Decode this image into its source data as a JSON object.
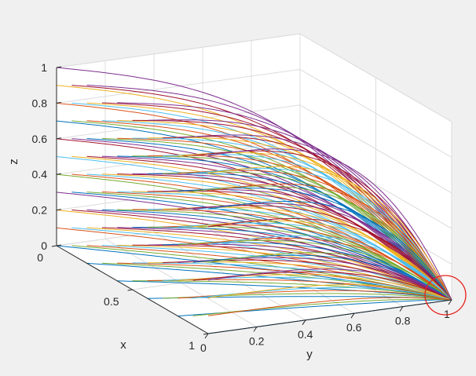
{
  "chart_data": {
    "type": "line",
    "subtype": "3d-trajectories",
    "title": "",
    "xlabel": "x",
    "ylabel": "y",
    "zlabel": "z",
    "xlim": [
      0,
      1
    ],
    "ylim": [
      0,
      1
    ],
    "zlim": [
      0,
      1
    ],
    "x_ticks": [
      "0",
      "0.5",
      "1"
    ],
    "y_ticks": [
      "0",
      "0.2",
      "0.4",
      "0.6",
      "0.8",
      "1"
    ],
    "z_ticks": [
      "0",
      "0.2",
      "0.4",
      "0.6",
      "0.8",
      "1"
    ],
    "grid": true,
    "box": "back-planes",
    "convergence_point": {
      "x": 1,
      "y": 1,
      "z": 0
    },
    "annotation": {
      "kind": "circle",
      "color": "#e8201a",
      "around": "convergence point (1, 1, 0)"
    },
    "series_colors": [
      "#0072bd",
      "#d95319",
      "#edb120",
      "#7e2f8e",
      "#77ac30",
      "#4dbeee",
      "#a2142f"
    ],
    "series": [
      {
        "x": 0.0,
        "z": 0.0,
        "color": "#0072bd"
      },
      {
        "x": 0.0,
        "z": 0.1,
        "color": "#d95319"
      },
      {
        "x": 0.0,
        "z": 0.2,
        "color": "#edb120"
      },
      {
        "x": 0.0,
        "z": 0.3,
        "color": "#7e2f8e"
      },
      {
        "x": 0.0,
        "z": 0.4,
        "color": "#77ac30"
      },
      {
        "x": 0.0,
        "z": 0.5,
        "color": "#4dbeee"
      },
      {
        "x": 0.0,
        "z": 0.6,
        "color": "#a2142f"
      },
      {
        "x": 0.0,
        "z": 0.7,
        "color": "#0072bd"
      },
      {
        "x": 0.0,
        "z": 0.8,
        "color": "#d95319"
      },
      {
        "x": 0.0,
        "z": 0.9,
        "color": "#edb120"
      },
      {
        "x": 0.0,
        "z": 1.0,
        "color": "#7e2f8e"
      },
      {
        "x": 0.1,
        "z": 0.05,
        "color": "#77ac30"
      },
      {
        "x": 0.1,
        "z": 0.15,
        "color": "#4dbeee"
      },
      {
        "x": 0.1,
        "z": 0.25,
        "color": "#a2142f"
      },
      {
        "x": 0.1,
        "z": 0.35,
        "color": "#0072bd"
      },
      {
        "x": 0.1,
        "z": 0.45,
        "color": "#d95319"
      },
      {
        "x": 0.1,
        "z": 0.55,
        "color": "#edb120"
      },
      {
        "x": 0.1,
        "z": 0.65,
        "color": "#7e2f8e"
      },
      {
        "x": 0.1,
        "z": 0.75,
        "color": "#77ac30"
      },
      {
        "x": 0.1,
        "z": 0.85,
        "color": "#4dbeee"
      },
      {
        "x": 0.1,
        "z": 0.95,
        "color": "#a2142f"
      },
      {
        "x": 0.2,
        "z": 0.0,
        "color": "#0072bd"
      },
      {
        "x": 0.2,
        "z": 0.1,
        "color": "#d95319"
      },
      {
        "x": 0.2,
        "z": 0.2,
        "color": "#edb120"
      },
      {
        "x": 0.2,
        "z": 0.3,
        "color": "#7e2f8e"
      },
      {
        "x": 0.2,
        "z": 0.4,
        "color": "#77ac30"
      },
      {
        "x": 0.2,
        "z": 0.5,
        "color": "#4dbeee"
      },
      {
        "x": 0.2,
        "z": 0.6,
        "color": "#a2142f"
      },
      {
        "x": 0.2,
        "z": 0.7,
        "color": "#0072bd"
      },
      {
        "x": 0.2,
        "z": 0.8,
        "color": "#d95319"
      },
      {
        "x": 0.2,
        "z": 0.9,
        "color": "#edb120"
      },
      {
        "x": 0.2,
        "z": 1.0,
        "color": "#7e2f8e"
      },
      {
        "x": 0.3,
        "z": 0.05,
        "color": "#77ac30"
      },
      {
        "x": 0.3,
        "z": 0.15,
        "color": "#4dbeee"
      },
      {
        "x": 0.3,
        "z": 0.25,
        "color": "#a2142f"
      },
      {
        "x": 0.3,
        "z": 0.35,
        "color": "#0072bd"
      },
      {
        "x": 0.3,
        "z": 0.45,
        "color": "#d95319"
      },
      {
        "x": 0.3,
        "z": 0.55,
        "color": "#edb120"
      },
      {
        "x": 0.3,
        "z": 0.65,
        "color": "#7e2f8e"
      },
      {
        "x": 0.3,
        "z": 0.75,
        "color": "#77ac30"
      },
      {
        "x": 0.3,
        "z": 0.85,
        "color": "#4dbeee"
      },
      {
        "x": 0.3,
        "z": 0.95,
        "color": "#a2142f"
      },
      {
        "x": 0.4,
        "z": 0.0,
        "color": "#0072bd"
      },
      {
        "x": 0.4,
        "z": 0.1,
        "color": "#d95319"
      },
      {
        "x": 0.4,
        "z": 0.2,
        "color": "#edb120"
      },
      {
        "x": 0.4,
        "z": 0.3,
        "color": "#7e2f8e"
      },
      {
        "x": 0.4,
        "z": 0.4,
        "color": "#77ac30"
      },
      {
        "x": 0.4,
        "z": 0.5,
        "color": "#4dbeee"
      },
      {
        "x": 0.4,
        "z": 0.6,
        "color": "#a2142f"
      },
      {
        "x": 0.4,
        "z": 0.7,
        "color": "#0072bd"
      },
      {
        "x": 0.4,
        "z": 0.8,
        "color": "#d95319"
      },
      {
        "x": 0.4,
        "z": 0.9,
        "color": "#edb120"
      },
      {
        "x": 0.4,
        "z": 1.0,
        "color": "#7e2f8e"
      },
      {
        "x": 0.5,
        "z": 0.05,
        "color": "#77ac30"
      },
      {
        "x": 0.5,
        "z": 0.15,
        "color": "#4dbeee"
      },
      {
        "x": 0.5,
        "z": 0.25,
        "color": "#a2142f"
      },
      {
        "x": 0.5,
        "z": 0.35,
        "color": "#0072bd"
      },
      {
        "x": 0.5,
        "z": 0.45,
        "color": "#d95319"
      },
      {
        "x": 0.5,
        "z": 0.55,
        "color": "#edb120"
      },
      {
        "x": 0.5,
        "z": 0.65,
        "color": "#7e2f8e"
      },
      {
        "x": 0.5,
        "z": 0.75,
        "color": "#77ac30"
      },
      {
        "x": 0.5,
        "z": 0.85,
        "color": "#4dbeee"
      },
      {
        "x": 0.5,
        "z": 0.95,
        "color": "#a2142f"
      },
      {
        "x": 0.6,
        "z": 0.0,
        "color": "#0072bd"
      },
      {
        "x": 0.6,
        "z": 0.1,
        "color": "#d95319"
      },
      {
        "x": 0.6,
        "z": 0.2,
        "color": "#edb120"
      },
      {
        "x": 0.6,
        "z": 0.3,
        "color": "#7e2f8e"
      },
      {
        "x": 0.6,
        "z": 0.4,
        "color": "#77ac30"
      },
      {
        "x": 0.6,
        "z": 0.5,
        "color": "#4dbeee"
      },
      {
        "x": 0.6,
        "z": 0.6,
        "color": "#a2142f"
      },
      {
        "x": 0.6,
        "z": 0.7,
        "color": "#0072bd"
      },
      {
        "x": 0.6,
        "z": 0.8,
        "color": "#d95319"
      },
      {
        "x": 0.6,
        "z": 0.9,
        "color": "#edb120"
      },
      {
        "x": 0.6,
        "z": 1.0,
        "color": "#7e2f8e"
      },
      {
        "x": 0.7,
        "z": 0.05,
        "color": "#77ac30"
      },
      {
        "x": 0.7,
        "z": 0.15,
        "color": "#4dbeee"
      },
      {
        "x": 0.7,
        "z": 0.25,
        "color": "#a2142f"
      },
      {
        "x": 0.7,
        "z": 0.35,
        "color": "#0072bd"
      },
      {
        "x": 0.7,
        "z": 0.45,
        "color": "#d95319"
      },
      {
        "x": 0.7,
        "z": 0.55,
        "color": "#edb120"
      },
      {
        "x": 0.7,
        "z": 0.65,
        "color": "#7e2f8e"
      },
      {
        "x": 0.7,
        "z": 0.75,
        "color": "#77ac30"
      },
      {
        "x": 0.7,
        "z": 0.85,
        "color": "#4dbeee"
      },
      {
        "x": 0.7,
        "z": 0.95,
        "color": "#a2142f"
      },
      {
        "x": 0.8,
        "z": 0.0,
        "color": "#0072bd"
      },
      {
        "x": 0.8,
        "z": 0.1,
        "color": "#d95319"
      },
      {
        "x": 0.8,
        "z": 0.2,
        "color": "#edb120"
      },
      {
        "x": 0.8,
        "z": 0.3,
        "color": "#7e2f8e"
      },
      {
        "x": 0.8,
        "z": 0.4,
        "color": "#77ac30"
      },
      {
        "x": 0.8,
        "z": 0.5,
        "color": "#4dbeee"
      },
      {
        "x": 0.8,
        "z": 0.6,
        "color": "#a2142f"
      },
      {
        "x": 0.8,
        "z": 0.7,
        "color": "#0072bd"
      },
      {
        "x": 0.8,
        "z": 0.8,
        "color": "#d95319"
      },
      {
        "x": 0.8,
        "z": 0.9,
        "color": "#edb120"
      },
      {
        "x": 0.8,
        "z": 1.0,
        "color": "#7e2f8e"
      },
      {
        "x": 0.9,
        "z": 0.05,
        "color": "#77ac30"
      },
      {
        "x": 0.9,
        "z": 0.15,
        "color": "#4dbeee"
      },
      {
        "x": 0.9,
        "z": 0.25,
        "color": "#a2142f"
      },
      {
        "x": 0.9,
        "z": 0.35,
        "color": "#0072bd"
      },
      {
        "x": 0.9,
        "z": 0.45,
        "color": "#d95319"
      },
      {
        "x": 0.9,
        "z": 0.55,
        "color": "#edb120"
      },
      {
        "x": 0.9,
        "z": 0.65,
        "color": "#7e2f8e"
      },
      {
        "x": 0.9,
        "z": 0.75,
        "color": "#77ac30"
      },
      {
        "x": 0.9,
        "z": 0.85,
        "color": "#4dbeee"
      },
      {
        "x": 0.9,
        "z": 0.95,
        "color": "#a2142f"
      },
      {
        "x": 1.0,
        "z": 0.0,
        "color": "#0072bd"
      },
      {
        "x": 1.0,
        "z": 0.1,
        "color": "#d95319"
      },
      {
        "x": 1.0,
        "z": 0.2,
        "color": "#edb120"
      },
      {
        "x": 1.0,
        "z": 0.3,
        "color": "#7e2f8e"
      },
      {
        "x": 1.0,
        "z": 0.4,
        "color": "#77ac30"
      },
      {
        "x": 1.0,
        "z": 0.5,
        "color": "#4dbeee"
      },
      {
        "x": 1.0,
        "z": 0.6,
        "color": "#a2142f"
      },
      {
        "x": 1.0,
        "z": 0.7,
        "color": "#0072bd"
      },
      {
        "x": 1.0,
        "z": 0.8,
        "color": "#d95319"
      },
      {
        "x": 1.0,
        "z": 0.9,
        "color": "#edb120"
      },
      {
        "x": 1.0,
        "z": 1.0,
        "color": "#7e2f8e"
      }
    ]
  }
}
